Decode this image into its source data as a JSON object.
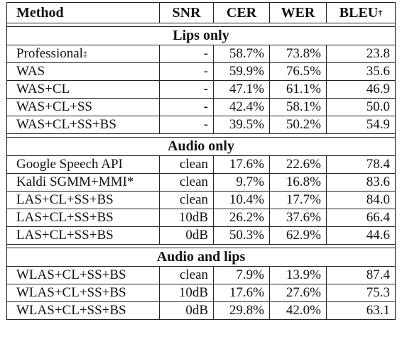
{
  "header": {
    "method": "Method",
    "snr": "SNR",
    "cer": "CER",
    "wer": "WER",
    "bleu": "BLEU",
    "bleu_mark": "†"
  },
  "sections": [
    {
      "title": "Lips only",
      "rows": [
        {
          "method": "Professional",
          "mark": "‡",
          "snr": "-",
          "cer": "58.7%",
          "wer": "73.8%",
          "bleu": "23.8"
        },
        {
          "method": "WAS",
          "mark": "",
          "snr": "-",
          "cer": "59.9%",
          "wer": "76.5%",
          "bleu": "35.6"
        },
        {
          "method": "WAS+CL",
          "mark": "",
          "snr": "-",
          "cer": "47.1%",
          "wer": "61.1%",
          "bleu": "46.9"
        },
        {
          "method": "WAS+CL+SS",
          "mark": "",
          "snr": "-",
          "cer": "42.4%",
          "wer": "58.1%",
          "bleu": "50.0"
        },
        {
          "method": "WAS+CL+SS+BS",
          "mark": "",
          "snr": "-",
          "cer": "39.5%",
          "wer": "50.2%",
          "bleu": "54.9"
        }
      ]
    },
    {
      "title": "Audio only",
      "rows": [
        {
          "method": "Google Speech API",
          "mark": "",
          "snr": "clean",
          "cer": "17.6%",
          "wer": "22.6%",
          "bleu": "78.4"
        },
        {
          "method": "Kaldi SGMM+MMI*",
          "mark": "",
          "snr": "clean",
          "cer": "9.7%",
          "wer": "16.8%",
          "bleu": "83.6"
        },
        {
          "method": "LAS+CL+SS+BS",
          "mark": "",
          "snr": "clean",
          "cer": "10.4%",
          "wer": "17.7%",
          "bleu": "84.0"
        },
        {
          "method": "LAS+CL+SS+BS",
          "mark": "",
          "snr": "10dB",
          "cer": "26.2%",
          "wer": "37.6%",
          "bleu": "66.4"
        },
        {
          "method": "LAS+CL+SS+BS",
          "mark": "",
          "snr": "0dB",
          "cer": "50.3%",
          "wer": "62.9%",
          "bleu": "44.6"
        }
      ]
    },
    {
      "title": "Audio and lips",
      "rows": [
        {
          "method": "WLAS+CL+SS+BS",
          "mark": "",
          "snr": "clean",
          "cer": "7.9%",
          "wer": "13.9%",
          "bleu": "87.4"
        },
        {
          "method": "WLAS+CL+SS+BS",
          "mark": "",
          "snr": "10dB",
          "cer": "17.6%",
          "wer": "27.6%",
          "bleu": "75.3"
        },
        {
          "method": "WLAS+CL+SS+BS",
          "mark": "",
          "snr": "0dB",
          "cer": "29.8%",
          "wer": "42.0%",
          "bleu": "63.1"
        }
      ]
    }
  ]
}
